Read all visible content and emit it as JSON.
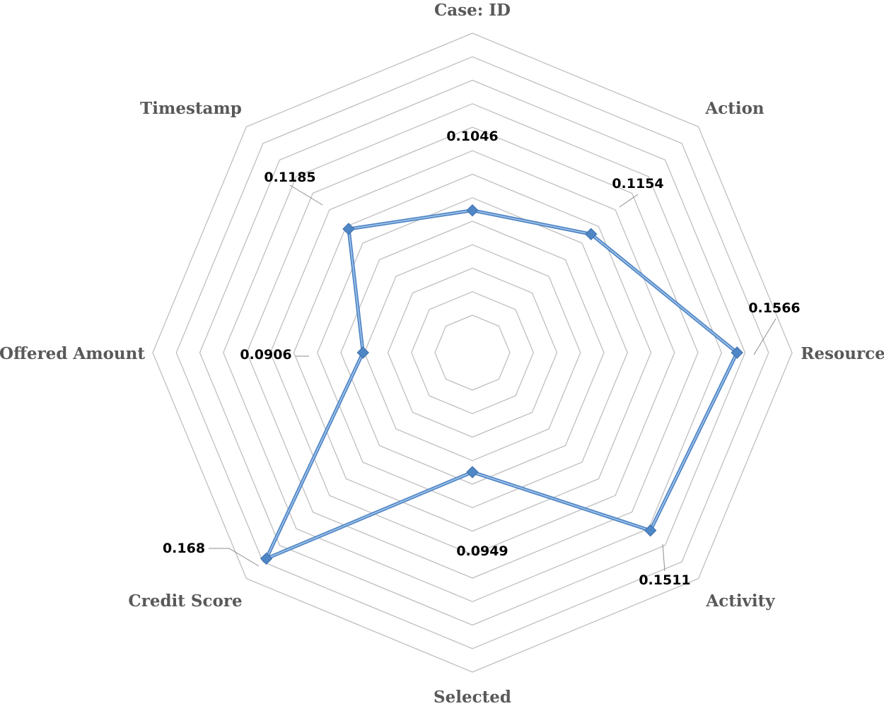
{
  "chart_data": {
    "type": "radar",
    "title": "",
    "categories": [
      "Case:  ID",
      "Action",
      "Resource",
      "Activity",
      "Selected",
      "Credit Score",
      "Offered Amount",
      "Timestamp"
    ],
    "series": [
      {
        "values": [
          0.1046,
          0.1154,
          0.1566,
          0.1511,
          0.0949,
          0.168,
          0.0906,
          0.1185
        ],
        "data_labels": [
          "0.1046",
          "0.1154",
          "0.1566",
          "0.1511",
          "0.0949",
          "0.168",
          "0.0906",
          "0.1185"
        ],
        "color": "#4f86c6"
      }
    ],
    "highlight_color": "#ff0000",
    "highlighted_label_index": 5,
    "rmin": 0.06,
    "rmax": 0.18,
    "ring_step": 0.01,
    "grid": true,
    "legend": "none"
  }
}
